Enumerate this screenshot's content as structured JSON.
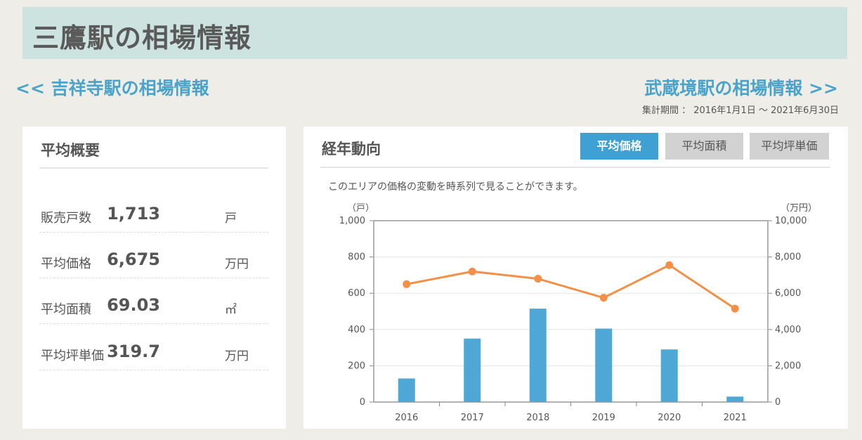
{
  "page": {
    "title": "三鷹駅の相場情報"
  },
  "nav": {
    "prev_label": "<< 吉祥寺駅の相場情報",
    "next_label": "武蔵境駅の相場情報 >>"
  },
  "period": "集計期間 ： 2016年1月1日 〜 2021年6月30日",
  "summary": {
    "title": "平均概要",
    "rows": [
      {
        "label": "販売戸数",
        "value": "1,713",
        "unit": "戸"
      },
      {
        "label": "平均価格",
        "value": "6,675",
        "unit": "万円"
      },
      {
        "label": "平均面積",
        "value": "69.03",
        "unit": "㎡"
      },
      {
        "label": "平均坪単価",
        "value": "319.7",
        "unit": "万円"
      }
    ]
  },
  "trend": {
    "title": "経年動向",
    "tabs": [
      {
        "label": "平均価格",
        "active": true
      },
      {
        "label": "平均面積",
        "active": false
      },
      {
        "label": "平均坪単価",
        "active": false
      }
    ],
    "description": "このエリアの価格の変動を時系列で見ることができます。"
  },
  "colors": {
    "title_bg": "#cde3df",
    "link": "#4aa3c8",
    "tab_active": "#3ea0d3",
    "bar": "#4fa7d6",
    "line": "#f29048"
  },
  "chart_data": {
    "type": "bar",
    "categories": [
      "2016",
      "2017",
      "2018",
      "2019",
      "2020",
      "2021"
    ],
    "series": [
      {
        "type": "bar",
        "axis": "left",
        "values": [
          130,
          350,
          515,
          405,
          290,
          30
        ]
      },
      {
        "type": "line",
        "axis": "right",
        "values": [
          6500,
          7200,
          6800,
          5750,
          7550,
          5150
        ]
      }
    ],
    "left_axis": {
      "unit_label": "（戸）",
      "min": 0,
      "max": 1000,
      "ticks": [
        "0",
        "200",
        "400",
        "600",
        "800",
        "1,000"
      ]
    },
    "right_axis": {
      "unit_label": "（万円）",
      "min": 0,
      "max": 10000,
      "ticks": [
        "0",
        "2,000",
        "4,000",
        "6,000",
        "8,000",
        "10,000"
      ]
    },
    "grid": true
  }
}
